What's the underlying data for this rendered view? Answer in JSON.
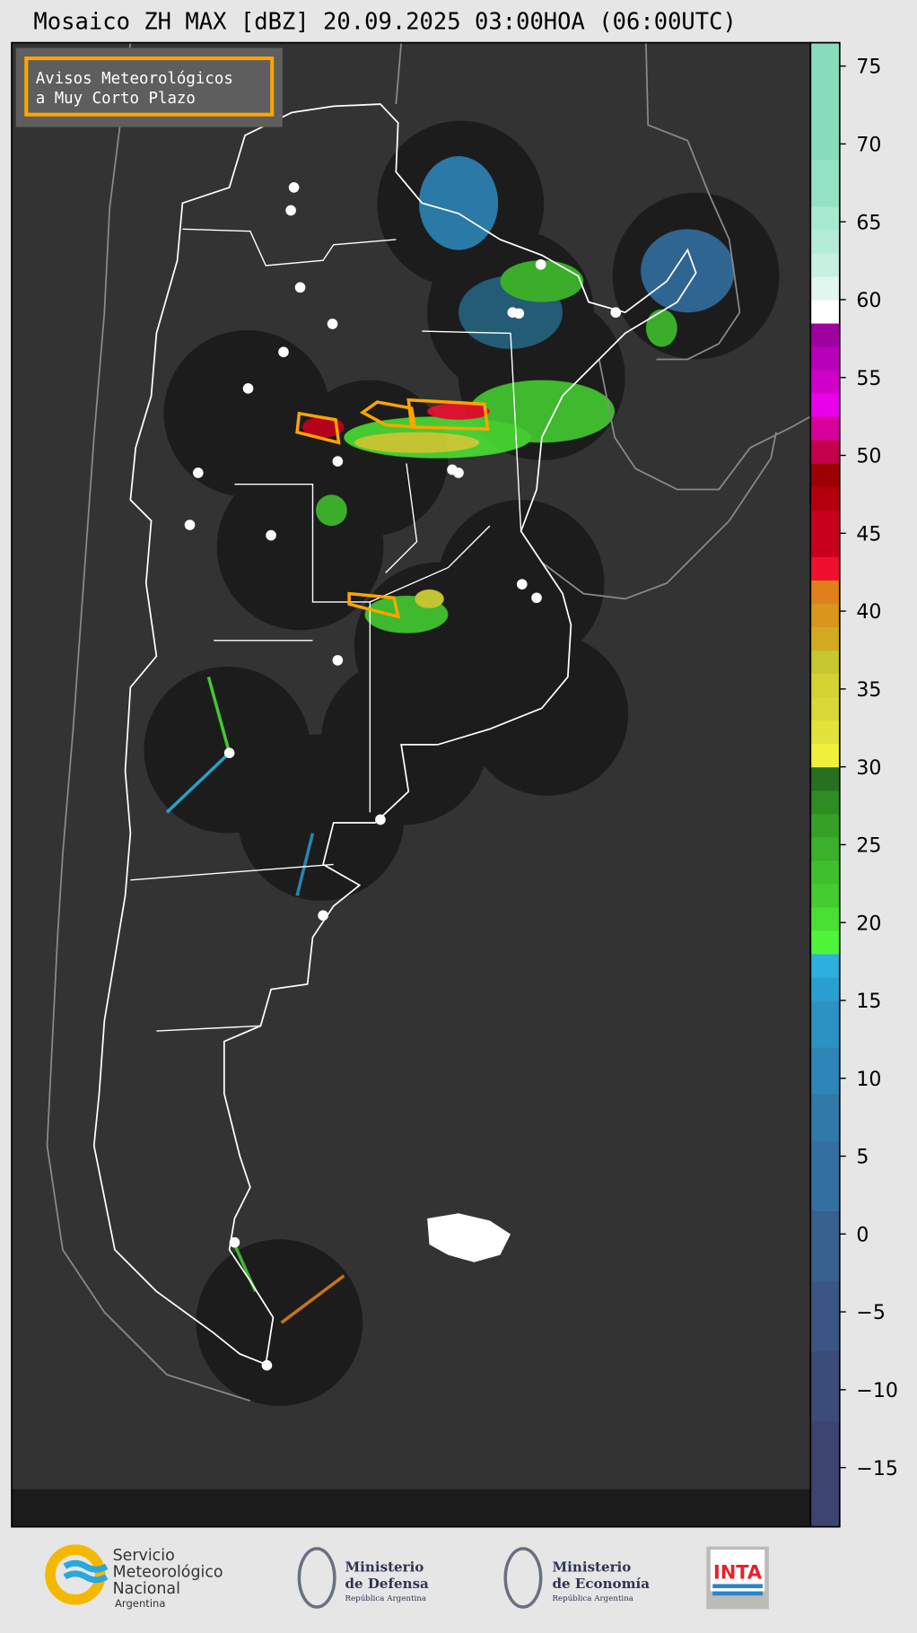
{
  "title": "Mosaico ZH MAX [dBZ] 20.09.2025 03:00HOA (06:00UTC)",
  "legend_box": {
    "line1": "Avisos Meteorológicos",
    "line2": "a Muy Corto Plazo",
    "border_color": "#ffa500"
  },
  "colorbar": {
    "unit": "dBZ",
    "range": [
      -18.8,
      76.5
    ],
    "ticks": [
      "75",
      "70",
      "65",
      "60",
      "55",
      "50",
      "45",
      "40",
      "35",
      "30",
      "25",
      "20",
      "15",
      "10",
      "5",
      "0",
      "−5",
      "−10",
      "−15"
    ],
    "tick_values": [
      75,
      70,
      65,
      60,
      55,
      50,
      45,
      40,
      35,
      30,
      25,
      20,
      15,
      10,
      5,
      0,
      -5,
      -10,
      -15
    ],
    "bins": [
      [
        -18.8,
        -12,
        "#3e4470"
      ],
      [
        -12,
        -7.5,
        "#3c4c7a"
      ],
      [
        -7.5,
        -3,
        "#3b5685"
      ],
      [
        -3,
        1.5,
        "#38608f"
      ],
      [
        1.5,
        6,
        "#336fa0"
      ],
      [
        6,
        9,
        "#307aaa"
      ],
      [
        9,
        12,
        "#2d85b8"
      ],
      [
        12,
        15,
        "#2b93c3"
      ],
      [
        15,
        16.5,
        "#2aa0d0"
      ],
      [
        16.5,
        18,
        "#2db0dd"
      ],
      [
        18,
        19.5,
        "#4ef53a"
      ],
      [
        19.5,
        21,
        "#4ae033"
      ],
      [
        21,
        22.5,
        "#45cc30"
      ],
      [
        22.5,
        24,
        "#40bf2e"
      ],
      [
        24,
        25.5,
        "#3ab02b"
      ],
      [
        25.5,
        27,
        "#34a126"
      ],
      [
        27,
        28.5,
        "#2e8c22"
      ],
      [
        28.5,
        30,
        "#26701e"
      ],
      [
        30,
        31.5,
        "#f0f03c"
      ],
      [
        31.5,
        33,
        "#e2e33a"
      ],
      [
        33,
        34.5,
        "#d8d836"
      ],
      [
        34.5,
        36,
        "#d2d233"
      ],
      [
        36,
        37.5,
        "#c6c631"
      ],
      [
        37.5,
        39,
        "#d2aa22"
      ],
      [
        39,
        40.5,
        "#d8961c"
      ],
      [
        40.5,
        42,
        "#e0801a"
      ],
      [
        42,
        43.5,
        "#f0102e"
      ],
      [
        43.5,
        46.5,
        "#c8001e"
      ],
      [
        46.5,
        48,
        "#b4000e"
      ],
      [
        48,
        49.5,
        "#9c0004"
      ],
      [
        49.5,
        51,
        "#c4004c"
      ],
      [
        51,
        52.5,
        "#d8009a"
      ],
      [
        52.5,
        54,
        "#ea00ea"
      ],
      [
        54,
        55.5,
        "#d000c8"
      ],
      [
        55.5,
        57,
        "#b800b8"
      ],
      [
        57,
        58.5,
        "#a000a0"
      ],
      [
        58.5,
        60,
        "#ffffff"
      ],
      [
        60,
        61.5,
        "#e0f6ee"
      ],
      [
        61.5,
        63,
        "#c8f0e0"
      ],
      [
        63,
        64.5,
        "#b4ecd8"
      ],
      [
        64.5,
        66,
        "#a8ead0"
      ],
      [
        66,
        69,
        "#94e2c4"
      ],
      [
        69,
        76.5,
        "#88dcbc"
      ]
    ]
  },
  "logos": {
    "smn": {
      "line1": "Servicio",
      "line2": "Meteorológico",
      "line3": "Nacional",
      "line4": "Argentina"
    },
    "defensa": {
      "line1": "Ministerio",
      "line2": "de Defensa",
      "line3": "República Argentina"
    },
    "economia": {
      "line1": "Ministerio",
      "line2": "de Economía",
      "line3": "República Argentina"
    },
    "inta": {
      "text": "INTA"
    }
  },
  "colors": {
    "map_bg": "#333333",
    "radar_disc": "#1c1c1c",
    "border": "#ffffff",
    "warning": "#ffa500"
  }
}
